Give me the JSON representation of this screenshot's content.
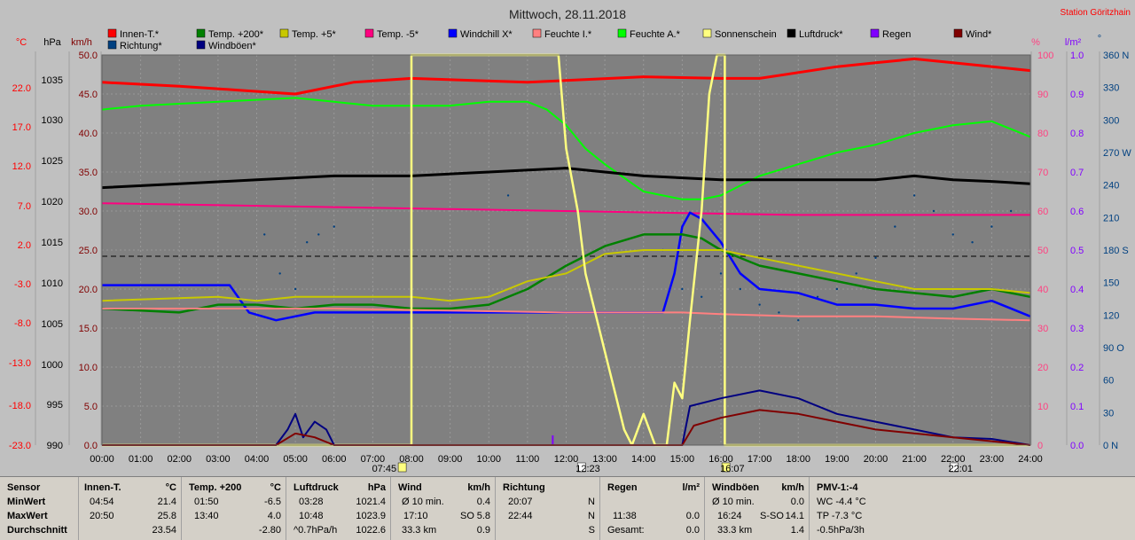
{
  "header": {
    "title": "Mittwoch, 28.11.2018",
    "station": "Station Göritzhain"
  },
  "legend": [
    {
      "label": "Innen-T.*",
      "color": "#ff0000"
    },
    {
      "label": "Temp. +200*",
      "color": "#008000"
    },
    {
      "label": "Temp. +5*",
      "color": "#c8c800"
    },
    {
      "label": "Temp. -5*",
      "color": "#ff0080"
    },
    {
      "label": "Windchill X*",
      "color": "#0000ff"
    },
    {
      "label": "Feuchte I.*",
      "color": "#ff8080"
    },
    {
      "label": "Feuchte A.*",
      "color": "#00ff00"
    },
    {
      "label": "Sonnenschein",
      "color": "#ffff80"
    },
    {
      "label": "Luftdruck*",
      "color": "#000000"
    },
    {
      "label": "Regen",
      "color": "#8000ff"
    },
    {
      "label": "Wind*",
      "color": "#800000"
    },
    {
      "label": "Richtung*",
      "color": "#004080"
    },
    {
      "label": "Windböen*",
      "color": "#000080"
    }
  ],
  "axes": {
    "temp_unit": "°C",
    "hpa_unit": "hPa",
    "kmh_unit": "km/h",
    "pct_unit": "%",
    "rain_unit": "l/m²",
    "dir_unit": "°",
    "temp_ticks": [
      "22.0",
      "17.0",
      "12.0",
      "7.0",
      "2.0",
      "-3.0",
      "-8.0",
      "-13.0",
      "-18.0",
      "-23.0"
    ],
    "hpa_ticks": [
      "1035",
      "1030",
      "1025",
      "1020",
      "1015",
      "1010",
      "1005",
      "1000",
      "995",
      "990"
    ],
    "kmh_ticks": [
      "50.0",
      "45.0",
      "40.0",
      "35.0",
      "30.0",
      "25.0",
      "20.0",
      "15.0",
      "10.0",
      "5.0",
      "0.0"
    ],
    "pct_ticks": [
      "100",
      "90",
      "80",
      "70",
      "60",
      "50",
      "40",
      "30",
      "20",
      "10",
      "0"
    ],
    "rain_ticks": [
      "1.0",
      "0.9",
      "0.8",
      "0.7",
      "0.6",
      "0.5",
      "0.4",
      "0.3",
      "0.2",
      "0.1",
      "0.0"
    ],
    "dir_ticks": [
      "360 N",
      "330",
      "300",
      "270 W",
      "240",
      "210",
      "180 S",
      "150",
      "120",
      "90 O",
      "60",
      "30",
      "0 N"
    ],
    "time_ticks": [
      "00:00",
      "01:00",
      "02:00",
      "03:00",
      "04:00",
      "05:00",
      "06:00",
      "07:00",
      "08:00",
      "09:00",
      "10:00",
      "11:00",
      "12:00",
      "13:00",
      "14:00",
      "15:00",
      "16:00",
      "17:00",
      "18:00",
      "19:00",
      "20:00",
      "21:00",
      "22:00",
      "23:00",
      "24:00"
    ],
    "sun_events": [
      "07:45",
      "12:23",
      "16:07",
      "22:01"
    ]
  },
  "chart_data": {
    "type": "line",
    "title": "Mittwoch, 28.11.2018",
    "x_unit": "hours",
    "kmh_range": [
      0,
      50
    ],
    "series": [
      {
        "name": "Innen-T.*",
        "scale": "kmh",
        "values": [
          [
            0,
            46.5
          ],
          [
            2,
            46
          ],
          [
            3.5,
            45.5
          ],
          [
            5,
            45
          ],
          [
            6.5,
            46.5
          ],
          [
            8,
            47
          ],
          [
            11,
            46.5
          ],
          [
            14,
            47.2
          ],
          [
            16,
            47
          ],
          [
            17,
            47
          ],
          [
            19,
            48.5
          ],
          [
            20,
            49
          ],
          [
            21,
            49.5
          ],
          [
            22,
            49
          ],
          [
            24,
            48
          ]
        ]
      },
      {
        "name": "Feuchte A.*",
        "scale": "kmh",
        "values": [
          [
            0,
            43
          ],
          [
            1,
            43.5
          ],
          [
            3,
            44
          ],
          [
            5,
            44.5
          ],
          [
            6,
            44
          ],
          [
            7,
            43.5
          ],
          [
            9,
            43.5
          ],
          [
            10,
            44
          ],
          [
            11,
            44
          ],
          [
            11.5,
            43
          ],
          [
            12,
            41
          ],
          [
            12.5,
            38
          ],
          [
            13,
            36
          ],
          [
            14,
            32.5
          ],
          [
            15,
            31.5
          ],
          [
            15.5,
            31.5
          ],
          [
            16,
            32
          ],
          [
            17,
            34.5
          ],
          [
            18,
            36
          ],
          [
            19,
            37.5
          ],
          [
            20,
            38.5
          ],
          [
            21,
            40
          ],
          [
            22,
            41
          ],
          [
            23,
            41.5
          ],
          [
            24,
            39.5
          ]
        ]
      },
      {
        "name": "Luftdruck*",
        "scale": "kmh",
        "values": [
          [
            0,
            33
          ],
          [
            2,
            33.5
          ],
          [
            4,
            34
          ],
          [
            6,
            34.5
          ],
          [
            8,
            34.5
          ],
          [
            10,
            35
          ],
          [
            12,
            35.5
          ],
          [
            13,
            35
          ],
          [
            14,
            34.5
          ],
          [
            16,
            34
          ],
          [
            17,
            34
          ],
          [
            18,
            34
          ],
          [
            19,
            34
          ],
          [
            20,
            34
          ],
          [
            21,
            34.5
          ],
          [
            22,
            34
          ],
          [
            23,
            33.8
          ],
          [
            24,
            33.5
          ]
        ]
      },
      {
        "name": "Temp. -5*",
        "scale": "kmh",
        "values": [
          [
            0,
            31
          ],
          [
            6,
            30.5
          ],
          [
            12,
            30
          ],
          [
            18,
            29.5
          ],
          [
            24,
            29.5
          ]
        ]
      },
      {
        "name": "Windchill X*",
        "scale": "kmh",
        "values": [
          [
            0,
            20.5
          ],
          [
            3.3,
            20.5
          ],
          [
            3.8,
            17
          ],
          [
            4.5,
            16
          ],
          [
            5.5,
            17
          ],
          [
            14.5,
            17
          ],
          [
            14.8,
            22
          ],
          [
            15,
            28
          ],
          [
            15.2,
            29.8
          ],
          [
            15.5,
            29
          ],
          [
            16,
            26
          ],
          [
            16.5,
            22
          ],
          [
            17,
            20
          ],
          [
            18,
            19.5
          ],
          [
            19,
            18
          ],
          [
            20,
            18
          ],
          [
            21,
            17.5
          ],
          [
            22,
            17.5
          ],
          [
            23,
            18.5
          ],
          [
            24,
            16.5
          ]
        ]
      },
      {
        "name": "Temp. +200*",
        "scale": "kmh",
        "values": [
          [
            0,
            17.5
          ],
          [
            2,
            17
          ],
          [
            3,
            18
          ],
          [
            4,
            18
          ],
          [
            5,
            17.5
          ],
          [
            6,
            18
          ],
          [
            7,
            18
          ],
          [
            8,
            17.5
          ],
          [
            9,
            17.5
          ],
          [
            10,
            18
          ],
          [
            11,
            20
          ],
          [
            12,
            23
          ],
          [
            13,
            25.5
          ],
          [
            14,
            27
          ],
          [
            15,
            27
          ],
          [
            15.5,
            26.5
          ],
          [
            16,
            25
          ],
          [
            17,
            23
          ],
          [
            18,
            22
          ],
          [
            19,
            21
          ],
          [
            20,
            20
          ],
          [
            21,
            19.5
          ],
          [
            22,
            19
          ],
          [
            23,
            20
          ],
          [
            24,
            19
          ]
        ]
      },
      {
        "name": "Temp. +5*",
        "scale": "kmh",
        "values": [
          [
            0,
            18.5
          ],
          [
            3,
            19
          ],
          [
            4,
            18.5
          ],
          [
            5,
            19
          ],
          [
            7,
            19
          ],
          [
            8,
            19
          ],
          [
            9,
            18.5
          ],
          [
            10,
            19
          ],
          [
            11,
            21
          ],
          [
            12,
            22
          ],
          [
            13,
            24.5
          ],
          [
            14,
            25
          ],
          [
            16,
            25
          ],
          [
            17,
            24
          ],
          [
            18,
            23
          ],
          [
            19,
            22
          ],
          [
            20,
            21
          ],
          [
            21,
            20
          ],
          [
            22,
            20
          ],
          [
            23,
            20
          ],
          [
            24,
            19.5
          ]
        ]
      },
      {
        "name": "Feuchte I.*",
        "scale": "kmh",
        "values": [
          [
            0,
            17.5
          ],
          [
            6,
            17.5
          ],
          [
            12,
            17
          ],
          [
            13,
            17
          ],
          [
            15,
            17
          ],
          [
            16,
            16.8
          ],
          [
            18,
            16.5
          ],
          [
            20,
            16.5
          ],
          [
            22,
            16.2
          ],
          [
            24,
            16
          ]
        ]
      },
      {
        "name": "Sonnenschein",
        "scale": "kmh",
        "values": [
          [
            0,
            0
          ],
          [
            7.75,
            0
          ],
          [
            8,
            0
          ],
          [
            8,
            50
          ],
          [
            11.8,
            50
          ],
          [
            12,
            38
          ],
          [
            12.3,
            30
          ],
          [
            12.5,
            22
          ],
          [
            13,
            12
          ],
          [
            13.3,
            6
          ],
          [
            13.5,
            2
          ],
          [
            13.7,
            0
          ],
          [
            14,
            4
          ],
          [
            14.3,
            0
          ],
          [
            14.6,
            0
          ],
          [
            14.8,
            8
          ],
          [
            15,
            6
          ],
          [
            15.2,
            16
          ],
          [
            15.5,
            30
          ],
          [
            15.7,
            45
          ],
          [
            15.9,
            50
          ],
          [
            16.1,
            50
          ],
          [
            16.1,
            0
          ],
          [
            24,
            0
          ]
        ]
      },
      {
        "name": "Windböen*",
        "scale": "kmh",
        "values": [
          [
            0,
            0
          ],
          [
            4.5,
            0
          ],
          [
            4.8,
            2
          ],
          [
            5,
            4
          ],
          [
            5.2,
            1
          ],
          [
            5.5,
            3
          ],
          [
            5.8,
            2
          ],
          [
            6,
            0
          ],
          [
            15,
            0
          ],
          [
            15.2,
            5
          ],
          [
            16,
            6
          ],
          [
            17,
            7
          ],
          [
            18,
            6
          ],
          [
            19,
            4
          ],
          [
            20,
            3
          ],
          [
            21,
            2
          ],
          [
            22,
            1
          ],
          [
            23,
            0.8
          ],
          [
            24,
            0
          ]
        ]
      },
      {
        "name": "Wind*",
        "scale": "kmh",
        "values": [
          [
            0,
            0
          ],
          [
            4.5,
            0
          ],
          [
            5,
            1.5
          ],
          [
            5.5,
            1
          ],
          [
            6,
            0
          ],
          [
            15,
            0
          ],
          [
            15.3,
            2.5
          ],
          [
            16,
            3.5
          ],
          [
            17,
            4.5
          ],
          [
            18,
            4
          ],
          [
            19,
            3
          ],
          [
            20,
            2
          ],
          [
            21,
            1.5
          ],
          [
            22,
            1
          ],
          [
            23,
            0.5
          ],
          [
            24,
            0
          ]
        ]
      }
    ],
    "direction_scatter": [
      [
        4.2,
        27
      ],
      [
        4.6,
        22
      ],
      [
        5,
        20
      ],
      [
        5.3,
        26
      ],
      [
        5.6,
        27
      ],
      [
        6,
        28
      ],
      [
        10.5,
        32
      ],
      [
        14.5,
        25
      ],
      [
        15,
        20
      ],
      [
        15.5,
        19
      ],
      [
        16,
        22
      ],
      [
        16.5,
        20
      ],
      [
        17,
        18
      ],
      [
        17.5,
        17
      ],
      [
        18,
        16
      ],
      [
        18.5,
        19
      ],
      [
        19,
        20
      ],
      [
        19.5,
        22
      ],
      [
        20,
        24
      ],
      [
        20.5,
        28
      ],
      [
        21,
        32
      ],
      [
        21.5,
        30
      ],
      [
        22,
        27
      ],
      [
        22.5,
        26
      ],
      [
        23,
        28
      ],
      [
        23.5,
        30
      ]
    ]
  },
  "stats": {
    "sensor": {
      "h": "Sensor",
      "r1": "MinWert",
      "r2": "MaxWert",
      "r3": "Durchschnitt"
    },
    "innen": {
      "h": "Innen-T.",
      "u": "°C",
      "r1a": "04:54",
      "r1b": "21.4",
      "r2a": "20:50",
      "r2b": "25.8",
      "r3b": "23.54"
    },
    "temp": {
      "h": "Temp. +200",
      "u": "°C",
      "r1a": "01:50",
      "r1b": "-6.5",
      "r2a": "13:40",
      "r2b": "4.0",
      "r3b": "-2.80"
    },
    "druck": {
      "h": "Luftdruck",
      "u": "hPa",
      "r1a": "03:28",
      "r1b": "1021.4",
      "r2a": "10:48",
      "r2b": "1023.9",
      "r3a": "^0.7hPa/h",
      "r3b": "1022.6"
    },
    "wind": {
      "h": "Wind",
      "u": "km/h",
      "r1a": "Ø 10 min.",
      "r1b": "0.4",
      "r2a": "17:10",
      "r2m": "SO",
      "r2b": "5.8",
      "r3a": "33.3 km",
      "r3b": "0.9"
    },
    "richtung": {
      "h": "Richtung",
      "r1a": "20:07",
      "r1b": "N",
      "r2a": "22:44",
      "r2b": "N",
      "r3b": "S"
    },
    "regen": {
      "h": "Regen",
      "u": "l/m²",
      "r2a": "11:38",
      "r2b": "0.0",
      "r3a": "Gesamt:",
      "r3b": "0.0"
    },
    "boen": {
      "h": "Windböen",
      "u": "km/h",
      "r1a": "Ø 10 min.",
      "r1b": "0.0",
      "r2a": "16:24",
      "r2m": "S-SO",
      "r2b": "14.1",
      "r3a": "33.3 km",
      "r3b": "1.4"
    },
    "pmv": {
      "h": "PMV-1:-4",
      "r1": "WC -4.4 °C",
      "r2": "TP -7.3 °C",
      "r3": "-0.5hPa/3h"
    }
  }
}
